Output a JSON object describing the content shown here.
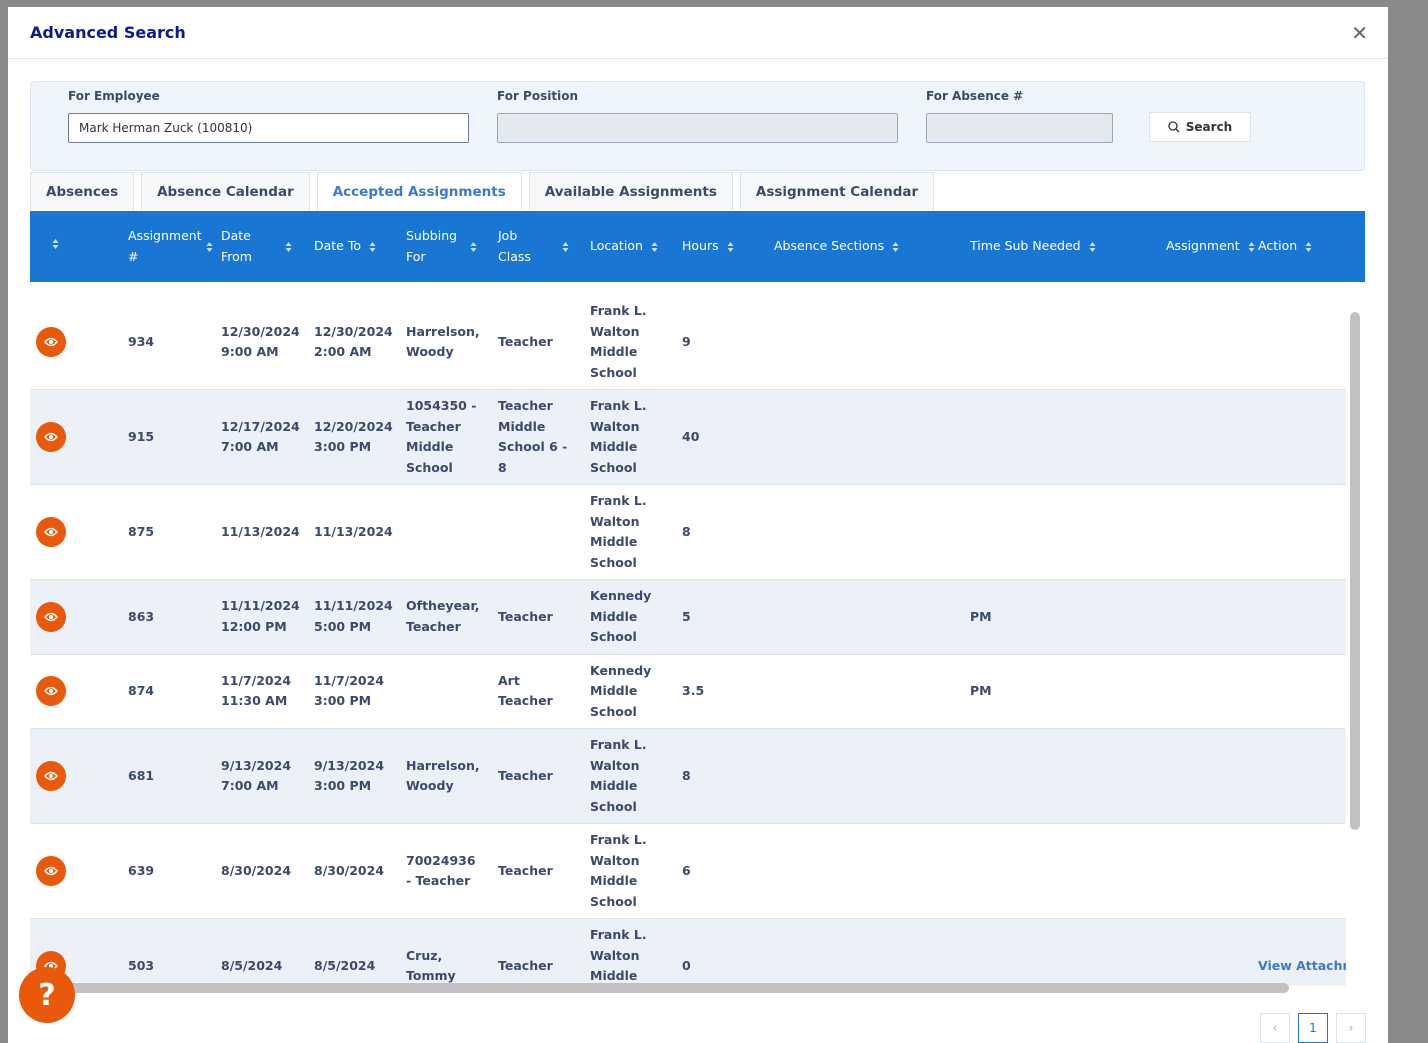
{
  "dialog": {
    "title": "Advanced Search"
  },
  "filters": {
    "employee": {
      "label": "For Employee",
      "value": "Mark Herman Zuck (100810)"
    },
    "position": {
      "label": "For Position"
    },
    "absence": {
      "label": "For Absence #"
    },
    "search_button": "Search"
  },
  "tabs": [
    {
      "label": "Absences"
    },
    {
      "label": "Absence Calendar"
    },
    {
      "label": "Accepted Assignments",
      "active": true
    },
    {
      "label": "Available Assignments"
    },
    {
      "label": "Assignment Calendar"
    }
  ],
  "table": {
    "columns": [
      "Assignment #",
      "Date From",
      "Date To",
      "Subbing For",
      "Job Class",
      "Location",
      "Hours",
      "Absence Sections",
      "Time Sub Needed",
      "Assignment",
      "Action"
    ],
    "rows": [
      [
        934,
        "12/30/2024 9:00 AM",
        "12/30/2024 2:00 AM",
        "Harrelson, Woody",
        "Teacher",
        "Frank L. Walton Middle School",
        9,
        null,
        null,
        null,
        null
      ],
      [
        915,
        "12/17/2024 7:00 AM",
        "12/20/2024 3:00 PM",
        "1054350 - Teacher Middle School",
        "Teacher Middle School 6 - 8",
        "Frank L. Walton Middle School",
        40,
        null,
        null,
        null,
        null
      ],
      [
        875,
        "11/13/2024",
        "11/13/2024",
        null,
        null,
        "Frank L. Walton Middle School",
        8,
        null,
        null,
        null,
        null
      ],
      [
        863,
        "11/11/2024 12:00 PM",
        "11/11/2024 5:00 PM",
        "Oftheyear, Teacher",
        "Teacher",
        "Kennedy Middle School",
        5,
        null,
        "PM",
        null,
        null
      ],
      [
        874,
        "11/7/2024 11:30 AM",
        "11/7/2024 3:00 PM",
        null,
        "Art Teacher",
        "Kennedy Middle School",
        3.5,
        null,
        "PM",
        null,
        null
      ],
      [
        681,
        "9/13/2024 7:00 AM",
        "9/13/2024 3:00 PM",
        "Harrelson, Woody",
        "Teacher",
        "Frank L. Walton Middle School",
        8,
        null,
        null,
        null,
        null
      ],
      [
        639,
        "8/30/2024",
        "8/30/2024",
        "70024936 - Teacher",
        "Teacher",
        "Frank L. Walton Middle School",
        6,
        null,
        null,
        null,
        null
      ],
      [
        503,
        "8/5/2024",
        "8/5/2024",
        "Cruz, Tommy",
        "Teacher",
        "Frank L. Walton Middle School",
        0,
        null,
        null,
        null,
        "View Attachments"
      ]
    ]
  },
  "pagination": {
    "page": 1
  },
  "help_button": "?"
}
